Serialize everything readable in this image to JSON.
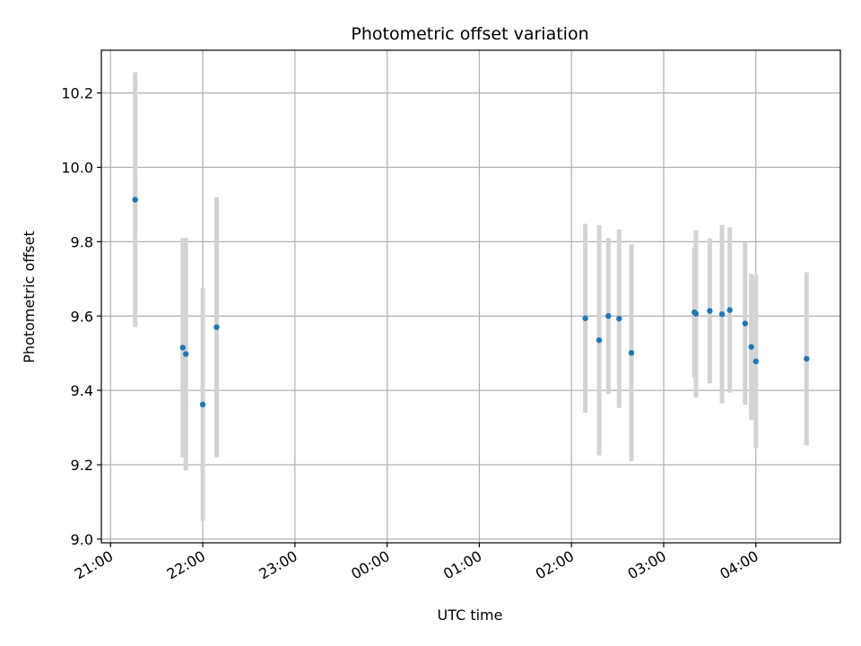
{
  "chart_data": {
    "type": "scatter",
    "title": "Photometric offset variation",
    "xlabel": "UTC time",
    "ylabel": "Photometric offset",
    "x_axis_kind": "time",
    "xlim": [
      "20:54",
      "04:55"
    ],
    "ylim": [
      8.99,
      10.315
    ],
    "xticks": [
      "21:00",
      "22:00",
      "23:00",
      "00:00",
      "01:00",
      "02:00",
      "03:00",
      "04:00"
    ],
    "yticks": [
      9.0,
      9.2,
      9.4,
      9.6,
      9.8,
      10.0,
      10.2
    ],
    "grid": true,
    "colors": {
      "point": "#1f77b4",
      "errorbar": "#d3d3d3",
      "grid": "#b0b0b0",
      "axis": "#000000"
    },
    "points": [
      {
        "time": "21:16",
        "y": 9.913,
        "err": 0.343
      },
      {
        "time": "21:47",
        "y": 9.515,
        "err": 0.295
      },
      {
        "time": "21:49",
        "y": 9.498,
        "err": 0.313
      },
      {
        "time": "22:00",
        "y": 9.362,
        "err": 0.313
      },
      {
        "time": "22:09",
        "y": 9.57,
        "err": 0.35
      },
      {
        "time": "02:09",
        "y": 9.594,
        "err": 0.254
      },
      {
        "time": "02:18",
        "y": 9.535,
        "err": 0.31
      },
      {
        "time": "02:24",
        "y": 9.6,
        "err": 0.21
      },
      {
        "time": "02:31",
        "y": 9.593,
        "err": 0.24
      },
      {
        "time": "02:39",
        "y": 9.501,
        "err": 0.292
      },
      {
        "time": "03:20",
        "y": 9.61,
        "err": 0.175
      },
      {
        "time": "03:21",
        "y": 9.606,
        "err": 0.225
      },
      {
        "time": "03:30",
        "y": 9.614,
        "err": 0.195
      },
      {
        "time": "03:38",
        "y": 9.605,
        "err": 0.24
      },
      {
        "time": "03:43",
        "y": 9.616,
        "err": 0.222
      },
      {
        "time": "03:53",
        "y": 9.58,
        "err": 0.218
      },
      {
        "time": "03:57",
        "y": 9.517,
        "err": 0.196
      },
      {
        "time": "04:00",
        "y": 9.478,
        "err": 0.233
      },
      {
        "time": "04:33",
        "y": 9.485,
        "err": 0.233
      }
    ]
  }
}
